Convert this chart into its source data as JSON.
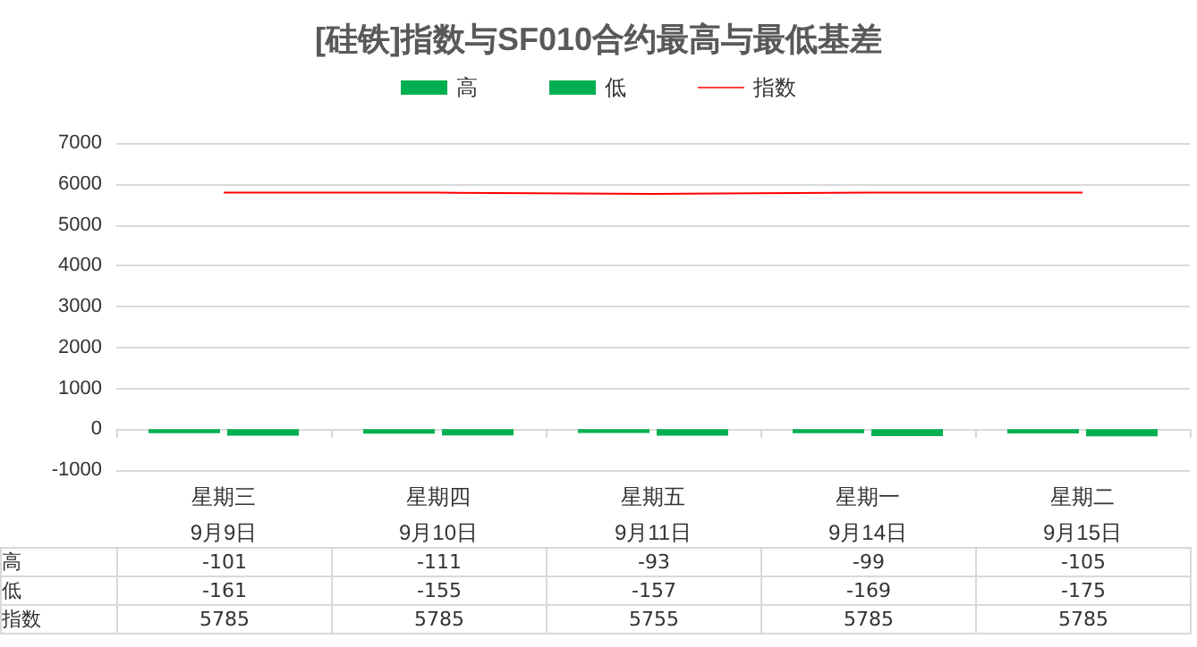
{
  "chart_data": {
    "type": "bar",
    "title": "[硅铁]指数与SF010合约最高与最低基差",
    "categories": [
      "星期三\n9月9日",
      "星期四\n9月10日",
      "星期五\n9月11日",
      "星期一\n9月14日",
      "星期二\n9月15日"
    ],
    "series": [
      {
        "name": "高",
        "color": "#00b050",
        "values": [
          -101,
          -111,
          -93,
          -99,
          -105
        ]
      },
      {
        "name": "低",
        "color": "#00b050",
        "values": [
          -161,
          -155,
          -157,
          -169,
          -175
        ]
      },
      {
        "name": "指数",
        "type": "line",
        "color": "#ff0000",
        "values": [
          5785,
          5785,
          5755,
          5785,
          5785
        ]
      }
    ],
    "ylim": [
      -1000,
      7000
    ],
    "yticks": [
      -1000,
      0,
      1000,
      2000,
      3000,
      4000,
      5000,
      6000,
      7000
    ],
    "grid": "y",
    "legend": "top",
    "marker": "none",
    "data_labels": true
  }
}
